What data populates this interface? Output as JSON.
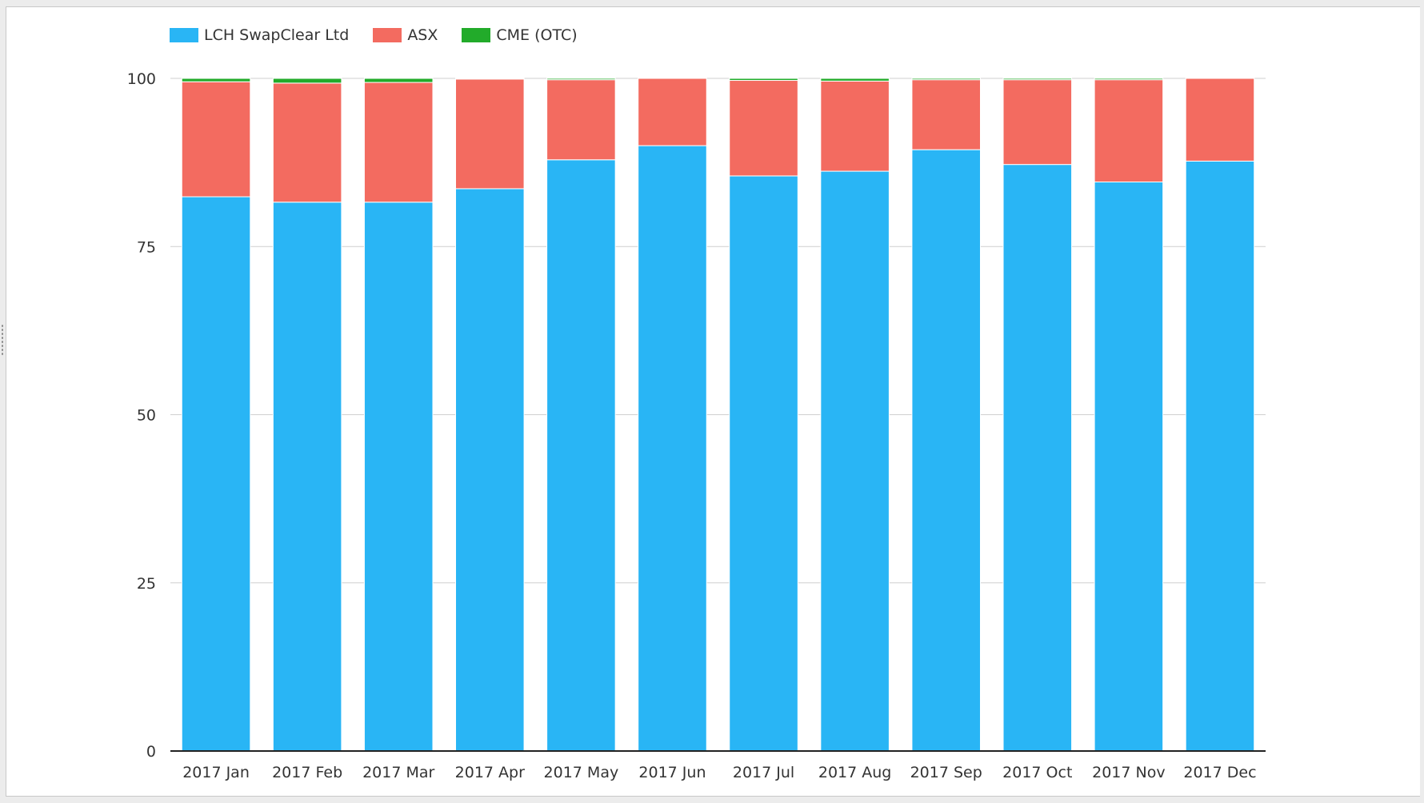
{
  "chart_data": {
    "type": "bar",
    "stacked": true,
    "title": "",
    "xlabel": "",
    "ylabel": "",
    "ylim": [
      0,
      100
    ],
    "yticks": [
      0,
      25,
      50,
      75,
      100
    ],
    "grid": true,
    "legend_position": "top-left",
    "categories": [
      "2017 Jan",
      "2017 Feb",
      "2017 Mar",
      "2017 Apr",
      "2017 May",
      "2017 Jun",
      "2017 Jul",
      "2017 Aug",
      "2017 Sep",
      "2017 Oct",
      "2017 Nov",
      "2017 Dec"
    ],
    "series": [
      {
        "name": "LCH SwapClear Ltd",
        "color": "#29b5f5",
        "values": [
          82.4,
          81.6,
          81.6,
          83.6,
          87.9,
          90.0,
          85.5,
          86.2,
          89.4,
          87.2,
          84.6,
          87.7
        ]
      },
      {
        "name": "ASX",
        "color": "#f36b60",
        "values": [
          17.1,
          17.7,
          17.8,
          16.3,
          11.9,
          10.0,
          14.2,
          13.4,
          10.4,
          12.6,
          15.2,
          12.3
        ]
      },
      {
        "name": "CME (OTC)",
        "color": "#22ab2a",
        "values": [
          0.5,
          0.7,
          0.6,
          0.1,
          0.2,
          0.0,
          0.3,
          0.4,
          0.2,
          0.2,
          0.2,
          0.0
        ]
      }
    ]
  }
}
